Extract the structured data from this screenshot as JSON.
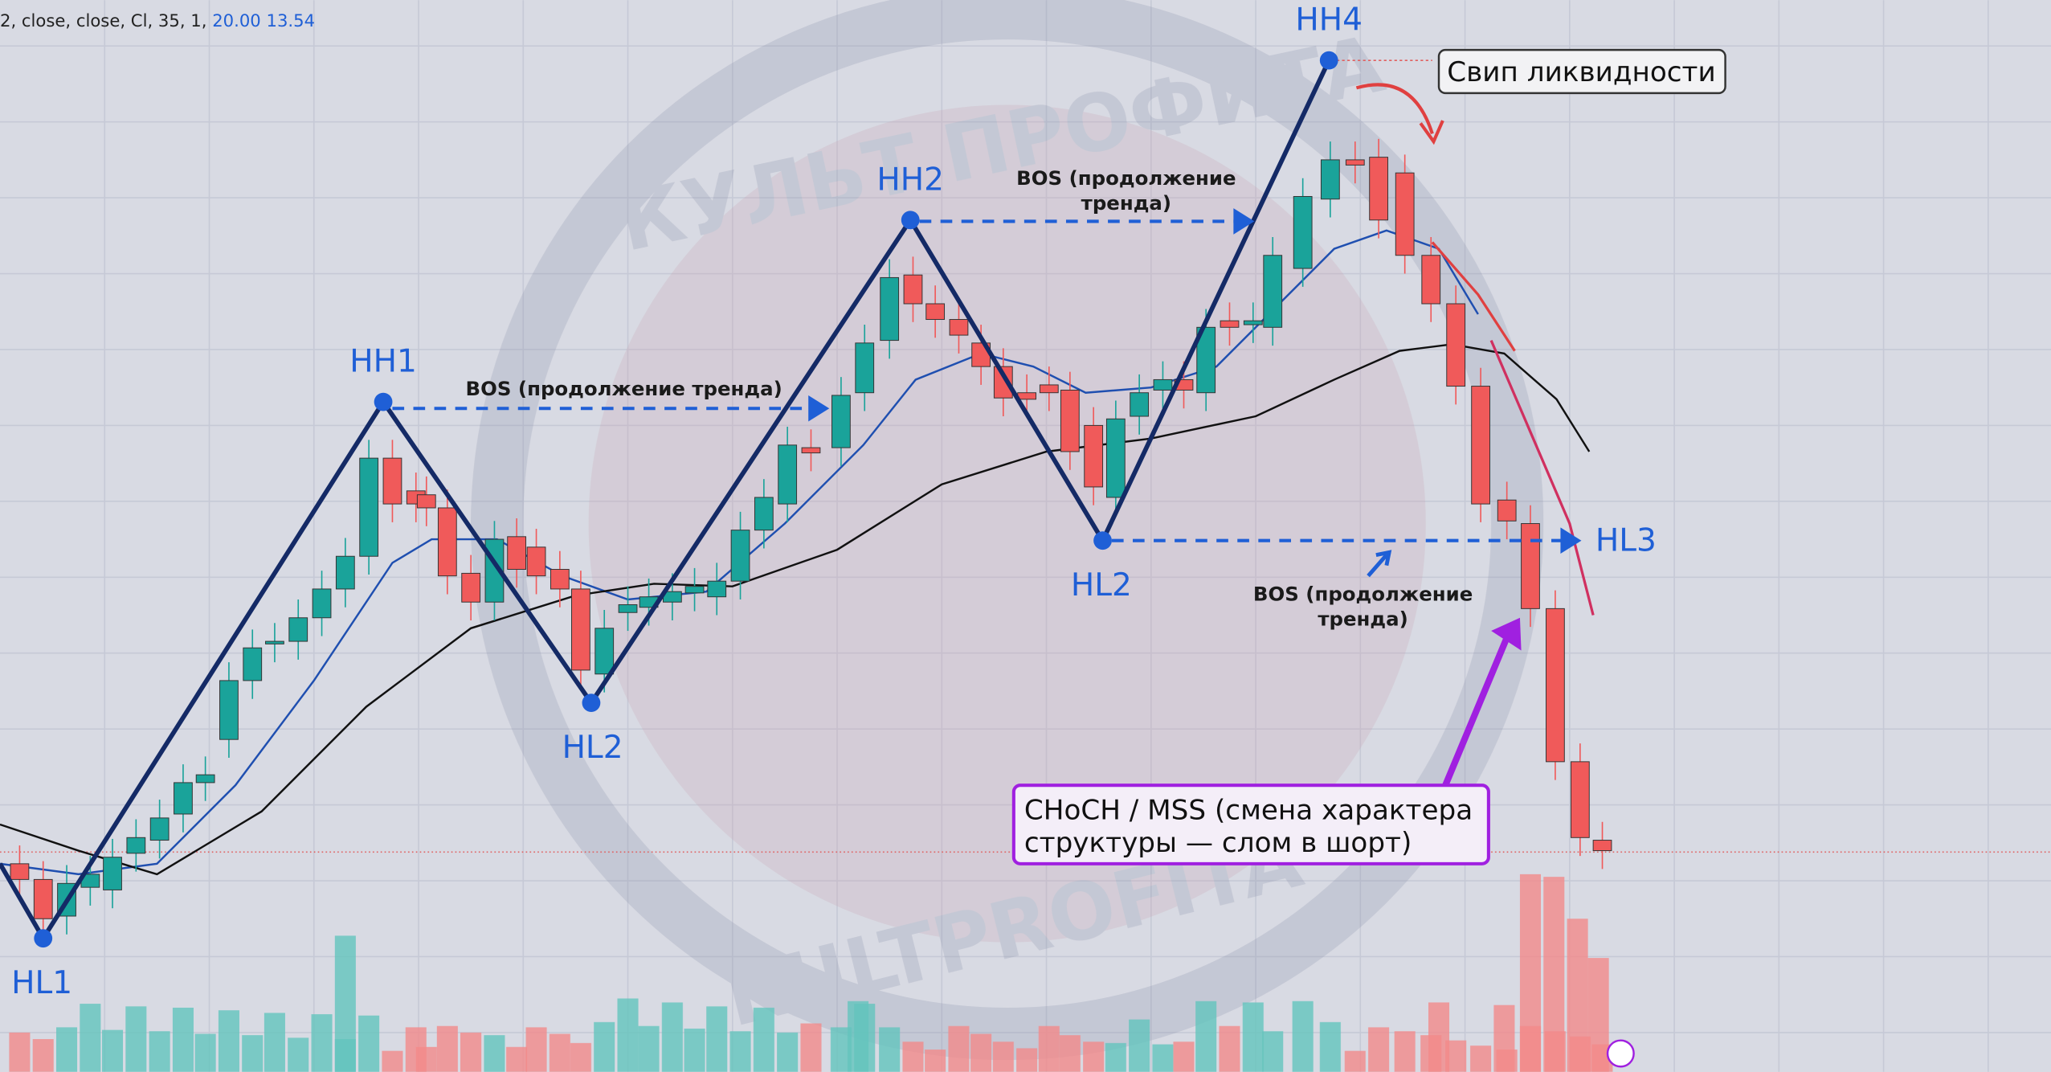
{
  "indicator": {
    "text": "2, close, close, Cl, 35, 1,",
    "value1": "20.00",
    "value2": "13.54"
  },
  "pivots": [
    {
      "label": "HL1"
    },
    {
      "label": "HH1"
    },
    {
      "label": "HL2"
    },
    {
      "label": "HH2"
    },
    {
      "label": "HL2"
    },
    {
      "label": "HH4"
    },
    {
      "label": "HL3"
    }
  ],
  "annotations": {
    "bos1": "BOS (продолжение тренда)",
    "bos2": [
      "BOS (продолжение",
      "тренда)"
    ],
    "bos3": [
      "BOS (продолжение",
      "тренда)"
    ],
    "sweep": "Свип ликвидности",
    "choch": [
      "CHoCH / MSS (смена характера",
      "структуры — слом в шорт)"
    ]
  },
  "watermark": {
    "top": "КУЛЬТ ПРОФИТА",
    "bottom": "KULTPROFITA"
  }
}
